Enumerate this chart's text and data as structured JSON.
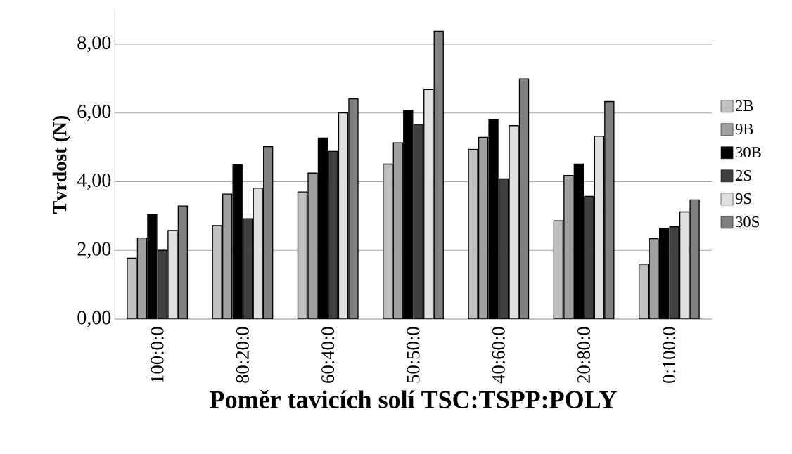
{
  "chart_data": {
    "type": "bar",
    "xlabel": "Poměr tavicích solí TSC:TSPP:POLY",
    "ylabel": "Tvrdost (N)",
    "categories": [
      "100:0:0",
      "80:20:0",
      "60:40:0",
      "50:50:0",
      "40:60:0",
      "20:80:0",
      "0:100:0"
    ],
    "series": [
      {
        "name": "2B",
        "color": "#c0c0c0",
        "values": [
          1.77,
          2.72,
          3.7,
          4.51,
          4.94,
          2.86,
          1.6
        ]
      },
      {
        "name": "9B",
        "color": "#a0a0a0",
        "values": [
          2.36,
          3.64,
          4.25,
          5.13,
          5.29,
          4.18,
          2.34
        ]
      },
      {
        "name": "30B",
        "color": "#000000",
        "values": [
          3.04,
          4.49,
          5.27,
          6.08,
          5.81,
          4.51,
          2.64
        ]
      },
      {
        "name": "2S",
        "color": "#404040",
        "values": [
          2.0,
          2.92,
          4.88,
          5.67,
          4.08,
          3.57,
          2.69
        ]
      },
      {
        "name": "9S",
        "color": "#e0e0e0",
        "values": [
          2.58,
          3.81,
          6.0,
          6.68,
          5.63,
          5.32,
          3.12
        ]
      },
      {
        "name": "30S",
        "color": "#808080",
        "values": [
          3.29,
          5.02,
          6.41,
          8.38,
          6.99,
          6.33,
          3.47
        ]
      }
    ],
    "ylim": [
      0,
      9
    ],
    "yticks": [
      {
        "value": 0,
        "label": "0,00"
      },
      {
        "value": 2,
        "label": "2,00"
      },
      {
        "value": 4,
        "label": "4,00"
      },
      {
        "value": 6,
        "label": "6,00"
      },
      {
        "value": 8,
        "label": "8,00"
      }
    ],
    "grid": "y",
    "legend": "right"
  }
}
